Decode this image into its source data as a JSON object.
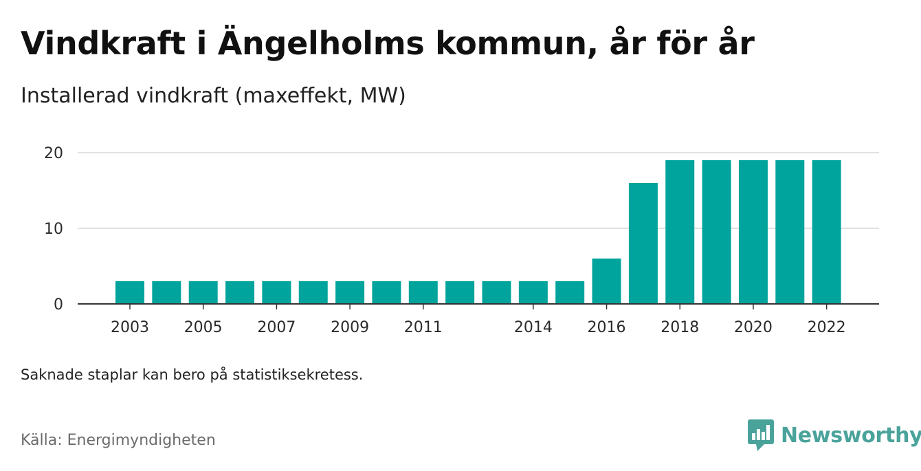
{
  "header": {
    "title": "Vindkraft i Ängelholms kommun, år för år",
    "subtitle": "Installerad vindkraft (maxeffekt, MW)"
  },
  "footer": {
    "note": "Saknade staplar kan bero på statistiksekretess.",
    "source": "Källa: Energimyndigheten",
    "brand": "Newsworthy"
  },
  "colors": {
    "bar": "#00a49c",
    "grid": "#d9d9d9",
    "axis": "#333333",
    "brand": "#4aa39b"
  },
  "icons": {
    "brand": "newsworthy-logo-icon"
  },
  "chart_data": {
    "type": "bar",
    "categories": [
      "2003",
      "2004",
      "2005",
      "2006",
      "2007",
      "2008",
      "2009",
      "2010",
      "2011",
      "2012",
      "2013",
      "2014",
      "2015",
      "2016",
      "2017",
      "2018",
      "2019",
      "2020",
      "2021",
      "2022"
    ],
    "x_tick_labels": [
      "2003",
      "2005",
      "2007",
      "2009",
      "2011",
      "2014",
      "2016",
      "2018",
      "2020",
      "2022"
    ],
    "values": [
      3,
      3,
      3,
      3,
      3,
      3,
      3,
      3,
      3,
      3,
      3,
      3,
      3,
      6,
      16,
      19,
      19,
      19,
      19,
      19
    ],
    "y_ticks": [
      0,
      10,
      20
    ],
    "ylim": [
      0,
      20
    ],
    "grid": true,
    "title": "Installerad vindkraft (maxeffekt, MW)"
  }
}
